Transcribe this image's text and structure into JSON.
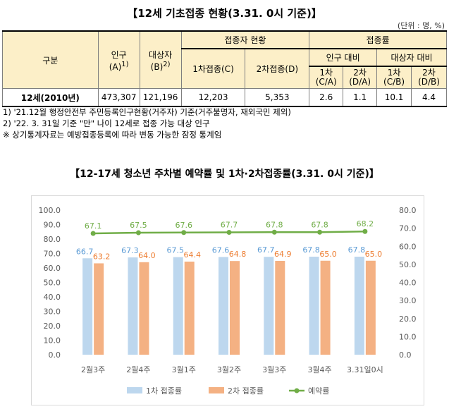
{
  "table": {
    "title": "【12세 기초접종 현황(3.31. 0시 기준)】",
    "unit": "(단위 : 명, %)",
    "headers": {
      "gubun": "구분",
      "population": "인구",
      "population_sub": "(A)",
      "population_sup": "1)",
      "target": "대상자",
      "target_sub": "(B)",
      "target_sup": "2)",
      "vaccinated_group": "접종자 현황",
      "first_dose": "1차접종(C)",
      "second_dose": "2차접종(D)",
      "rate_group": "접종률",
      "vs_population": "인구 대비",
      "vs_target": "대상자 대비",
      "r1_top": "1차",
      "r1_bot": "(C/A)",
      "r2_top": "2차",
      "r2_bot": "(D/A)",
      "r3_top": "1차",
      "r3_bot": "(C/B)",
      "r4_top": "2차",
      "r4_bot": "(D/B)"
    },
    "row": {
      "label": "12세(2010년)",
      "population": "473,307",
      "target": "121,196",
      "first_dose": "12,203",
      "second_dose": "5,353",
      "rate_ca": "2.6",
      "rate_da": "1.1",
      "rate_cb": "10.1",
      "rate_db": "4.4"
    }
  },
  "notes": [
    "1) '21.12월 행정안전부 주민등록인구현황(거주자) 기준(거주불명자, 재외국민 제외)",
    "2) '22. 3. 31일 기준 \"만\" 나이 12세로 접종 가능 대상 인구",
    "※ 상기통계자료는 예방접종등록에 따라 변동 가능한 잠정 통계임"
  ],
  "chart_data": {
    "type": "bar",
    "title": "【12-17세 청소년 주차별 예약률 및 1차·2차접종률(3.31. 0시 기준)】",
    "categories": [
      "2월3주",
      "2월4주",
      "3월1주",
      "3월2주",
      "3월3주",
      "3월4주",
      "3.31일0시"
    ],
    "series": [
      {
        "name": "1차 접종률",
        "type": "bar",
        "axis": "left",
        "color": "#bdd7ee",
        "label_color": "#5b9bd5",
        "values": [
          66.7,
          67.3,
          67.5,
          67.6,
          67.7,
          67.8,
          67.8
        ]
      },
      {
        "name": "2차 접종률",
        "type": "bar",
        "axis": "left",
        "color": "#f4b183",
        "label_color": "#ed7d31",
        "values": [
          63.2,
          64.0,
          64.4,
          64.8,
          64.9,
          65.0,
          65.0
        ]
      },
      {
        "name": "예약률",
        "type": "line",
        "axis": "right",
        "color": "#70ad47",
        "label_color": "#70ad47",
        "values": [
          67.1,
          67.5,
          67.6,
          67.7,
          67.8,
          67.8,
          68.2
        ]
      }
    ],
    "left_axis": {
      "min": 0,
      "max": 100,
      "step": 10,
      "ticks": [
        "0.0",
        "10.0",
        "20.0",
        "30.0",
        "40.0",
        "50.0",
        "60.0",
        "70.0",
        "80.0",
        "90.0",
        "100.0"
      ]
    },
    "right_axis": {
      "min": 0,
      "max": 80,
      "step": 10,
      "ticks": [
        "0.0",
        "10.0",
        "20.0",
        "30.0",
        "40.0",
        "50.0",
        "60.0",
        "70.0",
        "80.0"
      ]
    },
    "grid": false,
    "legend_position": "bottom"
  }
}
